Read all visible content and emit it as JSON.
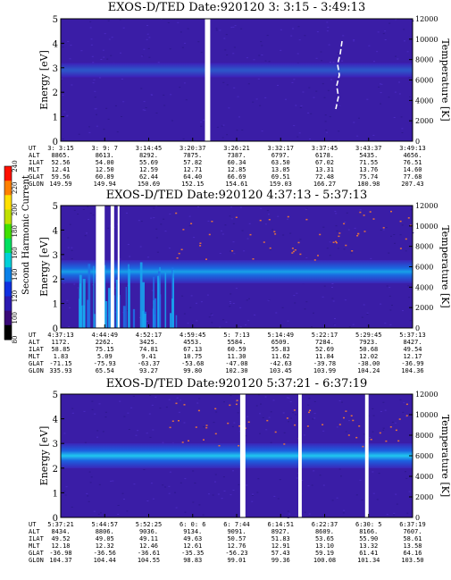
{
  "chart_data": [
    {
      "type": "heatmap",
      "title": "EXOS-D/TED  Date:920120  3: 3:15 - 3:49:13",
      "ylabel": "Energy [eV]",
      "y2label": "Temperature [K]",
      "ylim": [
        0,
        5
      ],
      "y2lim": [
        0,
        12000
      ],
      "yticks": [
        "0",
        "1",
        "2",
        "3",
        "4",
        "5"
      ],
      "y2ticks": [
        "0",
        "2000",
        "4000",
        "6000",
        "8000",
        "10000",
        "12000"
      ],
      "band_center_ev": 2.9,
      "gaps_fraction": [
        [
          0.41,
          0.425
        ]
      ],
      "rows": [
        {
          "label": "UT",
          "values": [
            "3: 3:15",
            "3: 9: 7",
            "3:14:45",
            "3:20:37",
            "3:26:21",
            "3:32:17",
            "3:37:45",
            "3:43:37",
            "3:49:13"
          ]
        },
        {
          "label": "ALT",
          "values": [
            "8865.",
            "8613.",
            "8292.",
            "7875.",
            "7387.",
            "6797.",
            "6178.",
            "5435.",
            "4656."
          ]
        },
        {
          "label": "ILAT",
          "values": [
            "52.56",
            "54.00",
            "55.69",
            "57.82",
            "60.34",
            "63.50",
            "67.02",
            "71.55",
            "76.51"
          ]
        },
        {
          "label": "MLT",
          "values": [
            "12.41",
            "12.50",
            "12.59",
            "12.71",
            "12.85",
            "13.05",
            "13.31",
            "13.76",
            "14.60"
          ]
        },
        {
          "label": "GLAT",
          "values": [
            "59.56",
            "60.89",
            "62.44",
            "64.40",
            "66.69",
            "69.51",
            "72.48",
            "75.74",
            "77.68"
          ]
        },
        {
          "label": "GLON",
          "values": [
            "149.59",
            "149.94",
            "150.69",
            "152.15",
            "154.61",
            "159.03",
            "166.27",
            "180.98",
            "207.43"
          ]
        }
      ]
    },
    {
      "type": "heatmap",
      "title": "EXOS-D/TED  Date:920120  4:37:13 - 5:37:13",
      "ylabel": "Energy [eV]",
      "y2label": "Temperature [K]",
      "ylim": [
        0,
        5
      ],
      "y2lim": [
        0,
        12000
      ],
      "yticks": [
        "0",
        "1",
        "2",
        "3",
        "4",
        "5"
      ],
      "y2ticks": [
        "0",
        "2000",
        "4000",
        "6000",
        "8000",
        "10000",
        "12000"
      ],
      "band_center_ev": 2.3,
      "gaps_fraction": [
        [
          0.1,
          0.125
        ],
        [
          0.142,
          0.152
        ],
        [
          0.162,
          0.167
        ]
      ],
      "rows": [
        {
          "label": "UT",
          "values": [
            "4:37:13",
            "4:44:49",
            "4:52:17",
            "4:59:45",
            "5: 7:13",
            "5:14:49",
            "5:22:17",
            "5:29:45",
            "5:37:13"
          ]
        },
        {
          "label": "ALT",
          "values": [
            "1172.",
            "2262.",
            "3425.",
            "4553.",
            "5584.",
            "6509.",
            "7284.",
            "7923.",
            "8427."
          ]
        },
        {
          "label": "ILAT",
          "values": [
            "58.85",
            "75.15",
            "74.81",
            "67.13",
            "60.59",
            "55.83",
            "52.69",
            "50.68",
            "49.54"
          ]
        },
        {
          "label": "MLT",
          "values": [
            "1.83",
            "5.09",
            "9.41",
            "10.75",
            "11.30",
            "11.62",
            "11.84",
            "12.02",
            "12.17"
          ]
        },
        {
          "label": "GLAT",
          "values": [
            "-71.15",
            "-75.93",
            "-63.37",
            "-53.68",
            "-47.08",
            "-42.63",
            "-39.78",
            "-38.00",
            "-36.99"
          ]
        },
        {
          "label": "GLON",
          "values": [
            "335.93",
            "65.54",
            "93.27",
            "99.80",
            "102.30",
            "103.45",
            "103.99",
            "104.24",
            "104.36"
          ]
        }
      ]
    },
    {
      "type": "heatmap",
      "title": "EXOS-D/TED  Date:920120  5:37:21 - 6:37:19",
      "ylabel": "Energy [eV]",
      "y2label": "Temperature [K]",
      "ylim": [
        0,
        5
      ],
      "y2lim": [
        0,
        12000
      ],
      "yticks": [
        "0",
        "1",
        "2",
        "3",
        "4",
        "5"
      ],
      "y2ticks": [
        "0",
        "2000",
        "4000",
        "6000",
        "8000",
        "10000",
        "12000"
      ],
      "band_center_ev": 2.5,
      "gaps_fraction": [
        [
          0.51,
          0.525
        ],
        [
          0.675,
          0.685
        ],
        [
          0.865,
          0.875
        ]
      ],
      "rows": [
        {
          "label": "UT",
          "values": [
            "5:37:21",
            "5:44:57",
            "5:52:25",
            "6: 0: 6",
            "6: 7:44",
            "6:14:51",
            "6:22:37",
            "6:30: 5",
            "6:37:19"
          ]
        },
        {
          "label": "ALT",
          "values": [
            "8434.",
            "8806.",
            "9036.",
            "9134.",
            "9091.",
            "8927.",
            "8609.",
            "8166.",
            "7607."
          ]
        },
        {
          "label": "ILAT",
          "values": [
            "49.52",
            "49.05",
            "49.11",
            "49.63",
            "50.57",
            "51.83",
            "53.65",
            "55.90",
            "58.61"
          ]
        },
        {
          "label": "MLT",
          "values": [
            "12.18",
            "12.32",
            "12.46",
            "12.61",
            "12.76",
            "12.91",
            "13.10",
            "13.32",
            "13.58"
          ]
        },
        {
          "label": "GLAT",
          "values": [
            "-36.98",
            "-36.56",
            "-36.61",
            "-35.35",
            "-56.23",
            "57.43",
            "59.19",
            "61.41",
            "64.16"
          ]
        },
        {
          "label": "GLON",
          "values": [
            "104.37",
            "104.44",
            "104.55",
            "98.83",
            "99.01",
            "99.36",
            "100.08",
            "101.34",
            "103.50"
          ]
        }
      ]
    }
  ],
  "colorbar": {
    "label": "Second Harmonic Current",
    "ticks": [
      "80",
      "100",
      "120",
      "140",
      "160",
      "180",
      "200",
      "220",
      "240"
    ],
    "colors": [
      "#000000",
      "#3a0a78",
      "#2b1ab0",
      "#1030e0",
      "#0a80e8",
      "#00d0d8",
      "#00e060",
      "#40e000",
      "#c0e000",
      "#ffe000",
      "#ff8000",
      "#ff1000"
    ]
  }
}
